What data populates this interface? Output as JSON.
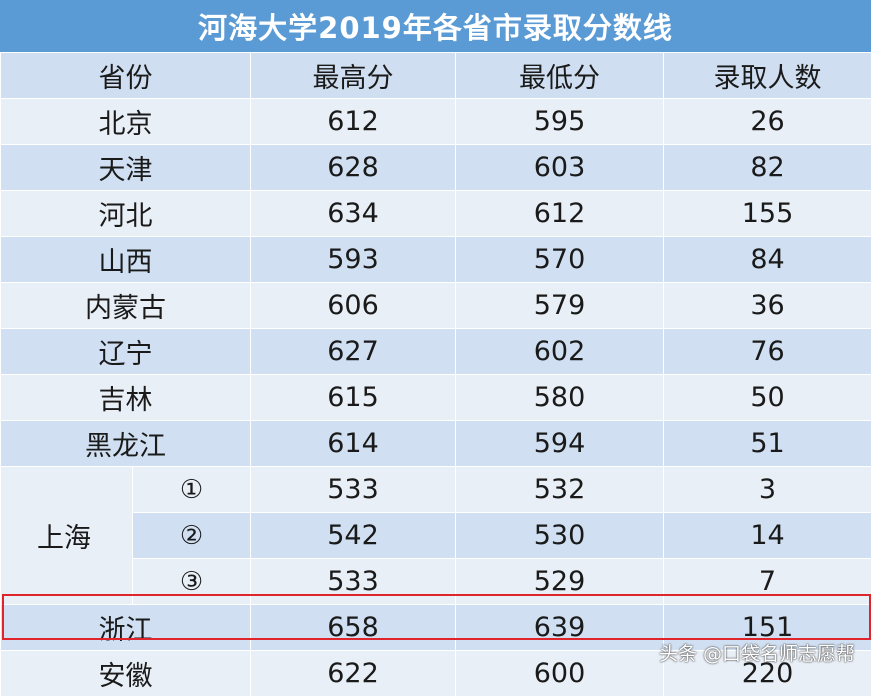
{
  "title": "河海大学2019年各省市录取分数线",
  "columns": [
    "省份",
    "最高分",
    "最低分",
    "录取人数"
  ],
  "rows": [
    {
      "province": "北京",
      "max": "612",
      "min": "595",
      "count": "26"
    },
    {
      "province": "天津",
      "max": "628",
      "min": "603",
      "count": "82"
    },
    {
      "province": "河北",
      "max": "634",
      "min": "612",
      "count": "155"
    },
    {
      "province": "山西",
      "max": "593",
      "min": "570",
      "count": "84"
    },
    {
      "province": "内蒙古",
      "max": "606",
      "min": "579",
      "count": "36"
    },
    {
      "province": "辽宁",
      "max": "627",
      "min": "602",
      "count": "76"
    },
    {
      "province": "吉林",
      "max": "615",
      "min": "580",
      "count": "50"
    },
    {
      "province": "黑龙江",
      "max": "614",
      "min": "594",
      "count": "51"
    }
  ],
  "shanghai": {
    "province": "上海",
    "sub_rows": [
      {
        "mark": "①",
        "max": "533",
        "min": "532",
        "count": "3"
      },
      {
        "mark": "②",
        "max": "542",
        "min": "530",
        "count": "14"
      },
      {
        "mark": "③",
        "max": "533",
        "min": "529",
        "count": "7"
      }
    ]
  },
  "tail_rows": [
    {
      "province": "浙江",
      "max": "658",
      "min": "639",
      "count": "151",
      "highlighted": true
    },
    {
      "province": "安徽",
      "max": "622",
      "min": "600",
      "count": "220"
    }
  ],
  "watermark": "头条 @口袋名师志愿帮",
  "colors": {
    "title_bg": "#5b9bd5",
    "row_dark": "#d0e0f2",
    "row_light": "#e9eff7",
    "highlight_border": "#e0242c"
  }
}
